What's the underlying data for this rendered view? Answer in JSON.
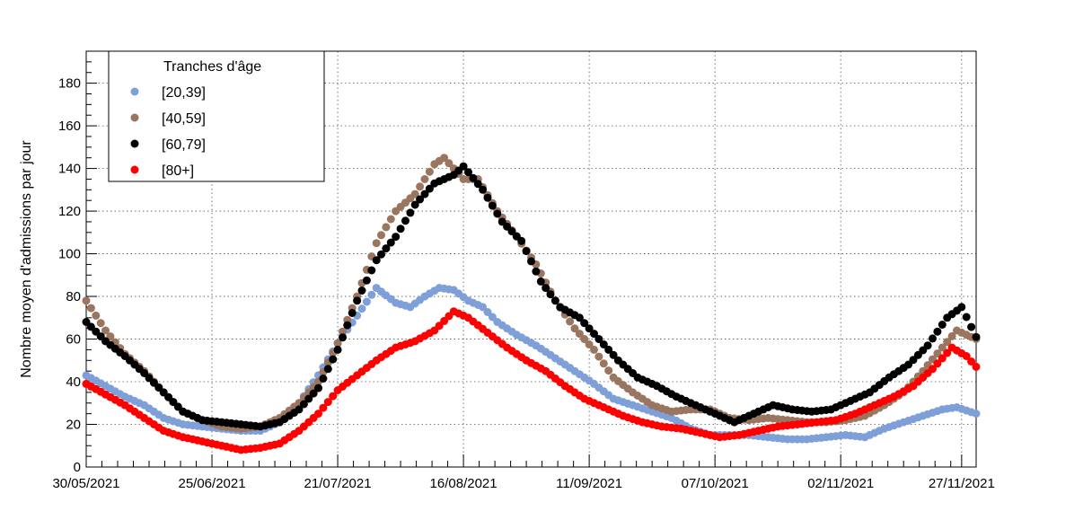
{
  "chart_data": {
    "type": "scatter",
    "title": "",
    "xlabel": "",
    "ylabel": "Nombre moyen d'admissions par jour",
    "x_start_date": "2021-05-30",
    "x_end_date": "2021-11-30",
    "x_tick_labels": [
      "30/05/2021",
      "25/06/2021",
      "21/07/2021",
      "16/08/2021",
      "11/09/2021",
      "07/10/2021",
      "02/11/2021",
      "27/11/2021"
    ],
    "ylim": [
      0,
      195
    ],
    "y_ticks": [
      0,
      20,
      40,
      60,
      80,
      100,
      120,
      140,
      160,
      180
    ],
    "grid": true,
    "legend": {
      "title": "Tranches d'âge",
      "placement": "top-left"
    },
    "series": [
      {
        "name": "[20,39]",
        "color": "#7f9fd8",
        "points": [
          [
            "2021-05-30",
            43
          ],
          [
            "2021-06-03",
            38
          ],
          [
            "2021-06-07",
            33
          ],
          [
            "2021-06-11",
            29
          ],
          [
            "2021-06-15",
            23
          ],
          [
            "2021-06-19",
            20
          ],
          [
            "2021-06-23",
            19
          ],
          [
            "2021-06-27",
            18
          ],
          [
            "2021-07-01",
            17
          ],
          [
            "2021-07-05",
            17
          ],
          [
            "2021-07-09",
            21
          ],
          [
            "2021-07-13",
            30
          ],
          [
            "2021-07-17",
            43
          ],
          [
            "2021-07-21",
            58
          ],
          [
            "2021-07-25",
            71
          ],
          [
            "2021-07-29",
            84
          ],
          [
            "2021-08-02",
            77
          ],
          [
            "2021-08-05",
            75
          ],
          [
            "2021-08-08",
            80
          ],
          [
            "2021-08-11",
            84
          ],
          [
            "2021-08-14",
            83
          ],
          [
            "2021-08-17",
            78
          ],
          [
            "2021-08-20",
            75
          ],
          [
            "2021-08-23",
            68
          ],
          [
            "2021-08-27",
            62
          ],
          [
            "2021-08-31",
            57
          ],
          [
            "2021-09-04",
            51
          ],
          [
            "2021-09-08",
            45
          ],
          [
            "2021-09-12",
            39
          ],
          [
            "2021-09-16",
            32
          ],
          [
            "2021-09-20",
            29
          ],
          [
            "2021-09-24",
            26
          ],
          [
            "2021-09-28",
            23
          ],
          [
            "2021-10-02",
            18
          ],
          [
            "2021-10-06",
            15
          ],
          [
            "2021-10-10",
            15
          ],
          [
            "2021-10-14",
            15
          ],
          [
            "2021-10-18",
            14
          ],
          [
            "2021-10-22",
            13
          ],
          [
            "2021-10-26",
            13
          ],
          [
            "2021-10-30",
            14
          ],
          [
            "2021-11-03",
            15
          ],
          [
            "2021-11-07",
            14
          ],
          [
            "2021-11-11",
            18
          ],
          [
            "2021-11-15",
            21
          ],
          [
            "2021-11-19",
            24
          ],
          [
            "2021-11-23",
            27
          ],
          [
            "2021-11-26",
            28
          ],
          [
            "2021-11-30",
            25
          ]
        ]
      },
      {
        "name": "[40,59]",
        "color": "#9a7560",
        "points": [
          [
            "2021-05-30",
            78
          ],
          [
            "2021-06-03",
            64
          ],
          [
            "2021-06-07",
            53
          ],
          [
            "2021-06-11",
            45
          ],
          [
            "2021-06-15",
            35
          ],
          [
            "2021-06-19",
            26
          ],
          [
            "2021-06-23",
            22
          ],
          [
            "2021-06-27",
            19
          ],
          [
            "2021-07-01",
            18
          ],
          [
            "2021-07-05",
            19
          ],
          [
            "2021-07-09",
            23
          ],
          [
            "2021-07-13",
            30
          ],
          [
            "2021-07-17",
            40
          ],
          [
            "2021-07-21",
            58
          ],
          [
            "2021-07-25",
            80
          ],
          [
            "2021-07-29",
            105
          ],
          [
            "2021-08-02",
            120
          ],
          [
            "2021-08-06",
            128
          ],
          [
            "2021-08-10",
            142
          ],
          [
            "2021-08-12",
            145
          ],
          [
            "2021-08-16",
            135
          ],
          [
            "2021-08-19",
            135
          ],
          [
            "2021-08-23",
            120
          ],
          [
            "2021-08-27",
            108
          ],
          [
            "2021-08-31",
            95
          ],
          [
            "2021-09-04",
            78
          ],
          [
            "2021-09-08",
            65
          ],
          [
            "2021-09-12",
            55
          ],
          [
            "2021-09-16",
            42
          ],
          [
            "2021-09-20",
            35
          ],
          [
            "2021-09-24",
            29
          ],
          [
            "2021-09-28",
            26
          ],
          [
            "2021-10-02",
            27
          ],
          [
            "2021-10-06",
            27
          ],
          [
            "2021-10-10",
            23
          ],
          [
            "2021-10-14",
            22
          ],
          [
            "2021-10-18",
            23
          ],
          [
            "2021-10-22",
            22
          ],
          [
            "2021-10-26",
            21
          ],
          [
            "2021-10-30",
            21
          ],
          [
            "2021-11-03",
            22
          ],
          [
            "2021-11-07",
            24
          ],
          [
            "2021-11-11",
            29
          ],
          [
            "2021-11-15",
            35
          ],
          [
            "2021-11-19",
            45
          ],
          [
            "2021-11-23",
            56
          ],
          [
            "2021-11-26",
            64
          ],
          [
            "2021-11-30",
            60
          ]
        ]
      },
      {
        "name": "[60,79]",
        "color": "#000000",
        "points": [
          [
            "2021-05-30",
            68
          ],
          [
            "2021-06-03",
            59
          ],
          [
            "2021-06-07",
            52
          ],
          [
            "2021-06-11",
            44
          ],
          [
            "2021-06-15",
            35
          ],
          [
            "2021-06-19",
            26
          ],
          [
            "2021-06-23",
            22
          ],
          [
            "2021-06-27",
            21
          ],
          [
            "2021-07-01",
            20
          ],
          [
            "2021-07-05",
            19
          ],
          [
            "2021-07-09",
            21
          ],
          [
            "2021-07-13",
            27
          ],
          [
            "2021-07-17",
            37
          ],
          [
            "2021-07-21",
            55
          ],
          [
            "2021-07-25",
            78
          ],
          [
            "2021-07-29",
            97
          ],
          [
            "2021-08-02",
            108
          ],
          [
            "2021-08-06",
            123
          ],
          [
            "2021-08-10",
            133
          ],
          [
            "2021-08-14",
            137
          ],
          [
            "2021-08-16",
            141
          ],
          [
            "2021-08-20",
            130
          ],
          [
            "2021-08-24",
            115
          ],
          [
            "2021-08-28",
            106
          ],
          [
            "2021-09-01",
            87
          ],
          [
            "2021-09-05",
            75
          ],
          [
            "2021-09-09",
            70
          ],
          [
            "2021-09-13",
            60
          ],
          [
            "2021-09-17",
            50
          ],
          [
            "2021-09-21",
            42
          ],
          [
            "2021-09-25",
            38
          ],
          [
            "2021-09-29",
            33
          ],
          [
            "2021-10-03",
            29
          ],
          [
            "2021-10-07",
            25
          ],
          [
            "2021-10-11",
            21
          ],
          [
            "2021-10-15",
            25
          ],
          [
            "2021-10-19",
            29
          ],
          [
            "2021-10-23",
            27
          ],
          [
            "2021-10-27",
            26
          ],
          [
            "2021-10-31",
            27
          ],
          [
            "2021-11-04",
            31
          ],
          [
            "2021-11-08",
            35
          ],
          [
            "2021-11-12",
            42
          ],
          [
            "2021-11-16",
            48
          ],
          [
            "2021-11-20",
            57
          ],
          [
            "2021-11-24",
            70
          ],
          [
            "2021-11-27",
            75
          ],
          [
            "2021-11-30",
            61
          ]
        ]
      },
      {
        "name": "[80+]",
        "color": "#ff0000",
        "points": [
          [
            "2021-05-30",
            39
          ],
          [
            "2021-06-03",
            34
          ],
          [
            "2021-06-07",
            29
          ],
          [
            "2021-06-11",
            23
          ],
          [
            "2021-06-15",
            17
          ],
          [
            "2021-06-19",
            14
          ],
          [
            "2021-06-23",
            12
          ],
          [
            "2021-06-27",
            10
          ],
          [
            "2021-07-01",
            8
          ],
          [
            "2021-07-05",
            9
          ],
          [
            "2021-07-09",
            11
          ],
          [
            "2021-07-13",
            17
          ],
          [
            "2021-07-17",
            25
          ],
          [
            "2021-07-21",
            36
          ],
          [
            "2021-07-25",
            43
          ],
          [
            "2021-07-29",
            50
          ],
          [
            "2021-08-02",
            56
          ],
          [
            "2021-08-06",
            59
          ],
          [
            "2021-08-10",
            64
          ],
          [
            "2021-08-14",
            73
          ],
          [
            "2021-08-17",
            70
          ],
          [
            "2021-08-21",
            63
          ],
          [
            "2021-08-25",
            56
          ],
          [
            "2021-08-29",
            50
          ],
          [
            "2021-09-02",
            45
          ],
          [
            "2021-09-06",
            38
          ],
          [
            "2021-09-10",
            32
          ],
          [
            "2021-09-14",
            28
          ],
          [
            "2021-09-18",
            24
          ],
          [
            "2021-09-22",
            21
          ],
          [
            "2021-09-26",
            19
          ],
          [
            "2021-09-30",
            18
          ],
          [
            "2021-10-04",
            16
          ],
          [
            "2021-10-08",
            14
          ],
          [
            "2021-10-12",
            15
          ],
          [
            "2021-10-16",
            17
          ],
          [
            "2021-10-20",
            19
          ],
          [
            "2021-10-24",
            20
          ],
          [
            "2021-10-28",
            21
          ],
          [
            "2021-11-01",
            22
          ],
          [
            "2021-11-05",
            25
          ],
          [
            "2021-11-09",
            29
          ],
          [
            "2021-11-13",
            33
          ],
          [
            "2021-11-17",
            38
          ],
          [
            "2021-11-21",
            46
          ],
          [
            "2021-11-25",
            56
          ],
          [
            "2021-11-28",
            52
          ],
          [
            "2021-11-30",
            47
          ]
        ]
      }
    ]
  }
}
